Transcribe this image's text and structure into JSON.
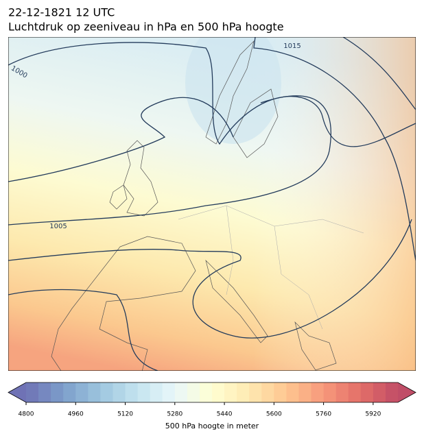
{
  "header": {
    "time": "22-12-1821 12 UTC",
    "title": "Luchtdruk op zeeniveau in hPa en 500 hPa hoogte"
  },
  "map": {
    "contour_labels": [
      "1000",
      "1005",
      "1015"
    ]
  },
  "colorbar": {
    "label": "500 hPa hoogte in meter",
    "lim": [
      4800,
      6000
    ],
    "ticks": [
      4800,
      4960,
      5120,
      5280,
      5440,
      5600,
      5760,
      5920
    ]
  }
}
